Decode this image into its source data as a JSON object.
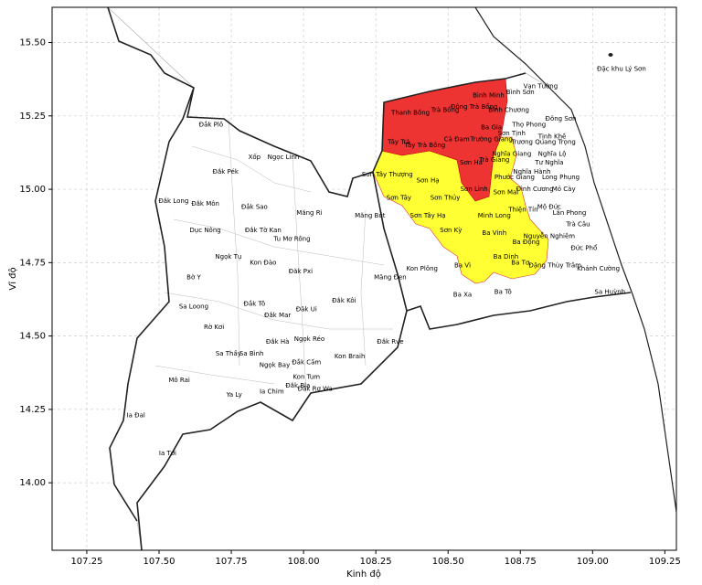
{
  "chart_data": {
    "type": "map",
    "xlabel": "Kinh độ",
    "ylabel": "Vĩ độ",
    "xlim": [
      107.13,
      109.29
    ],
    "ylim": [
      13.77,
      15.62
    ],
    "xticks": [
      107.25,
      {
        "value": 107.5,
        "label": "107.50"
      },
      107.75,
      {
        "value": 108,
        "label": "108.00"
      },
      108.25,
      {
        "value": 108.5,
        "label": "108.50"
      },
      108.75,
      {
        "value": 109,
        "label": "109.00"
      },
      109.25
    ],
    "yticks": [
      {
        "value": 14,
        "label": "14.00"
      },
      14.25,
      {
        "value": 14.5,
        "label": "14.50"
      },
      14.75,
      {
        "value": 15,
        "label": "15.00"
      },
      15.25,
      {
        "value": 15.5,
        "label": "15.50"
      }
    ],
    "grid": true,
    "labels": [
      {
        "text": "Đặc khu Lý Sơn",
        "x": 109.1,
        "y": 15.41
      },
      {
        "text": "Vạn Tường",
        "x": 108.82,
        "y": 15.35
      },
      {
        "text": "Bình Sơn",
        "x": 108.75,
        "y": 15.33
      },
      {
        "text": "Bình Minh",
        "x": 108.64,
        "y": 15.32
      },
      {
        "text": "Đông Trà Bồng",
        "x": 108.59,
        "y": 15.28
      },
      {
        "text": "Trà Bồng",
        "x": 108.49,
        "y": 15.27
      },
      {
        "text": "Thanh Bồng",
        "x": 108.37,
        "y": 15.26
      },
      {
        "text": "Bình Chương",
        "x": 108.71,
        "y": 15.27
      },
      {
        "text": "Đông Sơn",
        "x": 108.89,
        "y": 15.24
      },
      {
        "text": "Ba Gia",
        "x": 108.65,
        "y": 15.21
      },
      {
        "text": "Thọ Phong",
        "x": 108.78,
        "y": 15.22
      },
      {
        "text": "Sơn Tịnh",
        "x": 108.72,
        "y": 15.19
      },
      {
        "text": "Tịnh Khê",
        "x": 108.86,
        "y": 15.18
      },
      {
        "text": "Tây Trà",
        "x": 108.33,
        "y": 15.16
      },
      {
        "text": "Cà Đam",
        "x": 108.53,
        "y": 15.17
      },
      {
        "text": "Trường Giang",
        "x": 108.65,
        "y": 15.17
      },
      {
        "text": "Trương Quang Trọng",
        "x": 108.83,
        "y": 15.16
      },
      {
        "text": "Tây Trà Bồng",
        "x": 108.42,
        "y": 15.15
      },
      {
        "text": "Nghĩa Giang",
        "x": 108.72,
        "y": 15.12
      },
      {
        "text": "Nghĩa Lộ",
        "x": 108.86,
        "y": 15.12
      },
      {
        "text": "Sơn Hà",
        "x": 108.58,
        "y": 15.09
      },
      {
        "text": "Trà Giang",
        "x": 108.66,
        "y": 15.1
      },
      {
        "text": "Tư Nghĩa",
        "x": 108.85,
        "y": 15.09
      },
      {
        "text": "Nghĩa Hành",
        "x": 108.79,
        "y": 15.06
      },
      {
        "text": "Long Phụng",
        "x": 108.89,
        "y": 15.04
      },
      {
        "text": "Phước Giang",
        "x": 108.73,
        "y": 15.04
      },
      {
        "text": "Sơn Tây Thượng",
        "x": 108.29,
        "y": 15.05
      },
      {
        "text": "Sơn Hạ",
        "x": 108.43,
        "y": 15.03
      },
      {
        "text": "Sơn Linh",
        "x": 108.59,
        "y": 15.0
      },
      {
        "text": "Đình Cương",
        "x": 108.8,
        "y": 15.0
      },
      {
        "text": "Mỏ Cày",
        "x": 108.9,
        "y": 15.0
      },
      {
        "text": "Sơn Mai",
        "x": 108.7,
        "y": 14.99
      },
      {
        "text": "Sơn Tây",
        "x": 108.33,
        "y": 14.97
      },
      {
        "text": "Sơn Thủy",
        "x": 108.49,
        "y": 14.97
      },
      {
        "text": "Thiện Tín",
        "x": 108.76,
        "y": 14.93
      },
      {
        "text": "Mộ Đức",
        "x": 108.85,
        "y": 14.94
      },
      {
        "text": "Lân Phong",
        "x": 108.92,
        "y": 14.92
      },
      {
        "text": "Đắk Plô",
        "x": 107.68,
        "y": 15.22
      },
      {
        "text": "Xốp",
        "x": 107.83,
        "y": 15.11
      },
      {
        "text": "Ngọc Linh",
        "x": 107.93,
        "y": 15.11
      },
      {
        "text": "Đắk Pék",
        "x": 107.73,
        "y": 15.06
      },
      {
        "text": "Đắk Long",
        "x": 107.55,
        "y": 14.96
      },
      {
        "text": "Đắk Môn",
        "x": 107.66,
        "y": 14.95
      },
      {
        "text": "Đắk Sao",
        "x": 107.83,
        "y": 14.94
      },
      {
        "text": "Măng Ri",
        "x": 108.02,
        "y": 14.92
      },
      {
        "text": "Măng Bút",
        "x": 108.23,
        "y": 14.91
      },
      {
        "text": "Sơn Tây Hạ",
        "x": 108.43,
        "y": 14.91
      },
      {
        "text": "Minh Long",
        "x": 108.66,
        "y": 14.91
      },
      {
        "text": "Dục Nông",
        "x": 107.66,
        "y": 14.86
      },
      {
        "text": "Đắk Tờ Kan",
        "x": 107.86,
        "y": 14.86
      },
      {
        "text": "Tu Mơ Rông",
        "x": 107.96,
        "y": 14.83
      },
      {
        "text": "Sơn Kỳ",
        "x": 108.51,
        "y": 14.86
      },
      {
        "text": "Ba Vinh",
        "x": 108.66,
        "y": 14.85
      },
      {
        "text": "Trà Câu",
        "x": 108.95,
        "y": 14.88
      },
      {
        "text": "Nguyễn Nghiêm",
        "x": 108.85,
        "y": 14.84
      },
      {
        "text": "Ba Động",
        "x": 108.77,
        "y": 14.82
      },
      {
        "text": "Đức Phổ",
        "x": 108.97,
        "y": 14.8
      },
      {
        "text": "Ngọk Tụ",
        "x": 107.74,
        "y": 14.77
      },
      {
        "text": "Kon Đào",
        "x": 107.86,
        "y": 14.75
      },
      {
        "text": "Ba Dinh",
        "x": 108.7,
        "y": 14.77
      },
      {
        "text": "Ba Tơ",
        "x": 108.75,
        "y": 14.75
      },
      {
        "text": "Đặng Thùy Trâm",
        "x": 108.87,
        "y": 14.74
      },
      {
        "text": "Khánh Cường",
        "x": 109.02,
        "y": 14.73
      },
      {
        "text": "Ba Vì",
        "x": 108.55,
        "y": 14.74
      },
      {
        "text": "Kon Plông",
        "x": 108.41,
        "y": 14.73
      },
      {
        "text": "Đăk Pxi",
        "x": 107.99,
        "y": 14.72
      },
      {
        "text": "Bờ Y",
        "x": 107.62,
        "y": 14.7
      },
      {
        "text": "Măng Đen",
        "x": 108.3,
        "y": 14.7
      },
      {
        "text": "Sa Huỳnh",
        "x": 109.06,
        "y": 14.65
      },
      {
        "text": "Ba Xa",
        "x": 108.55,
        "y": 14.64
      },
      {
        "text": "Ba Tô",
        "x": 108.69,
        "y": 14.65
      },
      {
        "text": "Đắk Kôi",
        "x": 108.14,
        "y": 14.62
      },
      {
        "text": "Sa Loong",
        "x": 107.62,
        "y": 14.6
      },
      {
        "text": "Đắk Tô",
        "x": 107.83,
        "y": 14.61
      },
      {
        "text": "Đăk Ui",
        "x": 108.01,
        "y": 14.59
      },
      {
        "text": "Đắk Mar",
        "x": 107.91,
        "y": 14.57
      },
      {
        "text": "Rờ Kơi",
        "x": 107.69,
        "y": 14.53
      },
      {
        "text": "Ngọk Réo",
        "x": 108.02,
        "y": 14.49
      },
      {
        "text": "Đắk Rve",
        "x": 108.3,
        "y": 14.48
      },
      {
        "text": "Đắk Hà",
        "x": 107.91,
        "y": 14.48
      },
      {
        "text": "Sa Thầy",
        "x": 107.74,
        "y": 14.44
      },
      {
        "text": "Sa Bình",
        "x": 107.82,
        "y": 14.44
      },
      {
        "text": "Kon Braih",
        "x": 108.16,
        "y": 14.43
      },
      {
        "text": "Ngọk Bay",
        "x": 107.9,
        "y": 14.4
      },
      {
        "text": "Đắk Cấm",
        "x": 108.01,
        "y": 14.41
      },
      {
        "text": "Kon Tum",
        "x": 108.01,
        "y": 14.36
      },
      {
        "text": "Mô Rai",
        "x": 107.57,
        "y": 14.35
      },
      {
        "text": "Đắk Bla",
        "x": 107.98,
        "y": 14.33
      },
      {
        "text": "Đăk Rơ Wa",
        "x": 108.04,
        "y": 14.32
      },
      {
        "text": "Ya Ly",
        "x": 107.76,
        "y": 14.3
      },
      {
        "text": "Ia Chim",
        "x": 107.89,
        "y": 14.31
      },
      {
        "text": "Ia Đal",
        "x": 107.42,
        "y": 14.23
      },
      {
        "text": "Ia Tơi",
        "x": 107.53,
        "y": 14.1
      }
    ]
  }
}
